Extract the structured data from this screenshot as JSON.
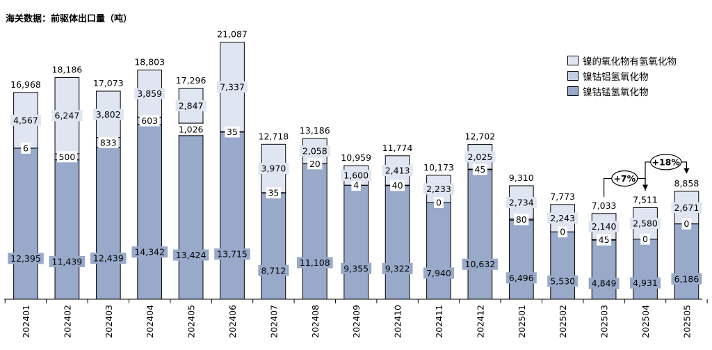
{
  "chart_data": {
    "type": "bar",
    "stacked": true,
    "title": "海关数据：前驱体出口量（吨）",
    "categories": [
      "202401",
      "202402",
      "202403",
      "202404",
      "202405",
      "202406",
      "202407",
      "202408",
      "202409",
      "202410",
      "202411",
      "202412",
      "202501",
      "202502",
      "202503",
      "202504",
      "202505"
    ],
    "series": [
      {
        "name": "镍钴锰氢氧化物",
        "color": "#98a9c9",
        "values": [
          12395,
          11439,
          12439,
          14342,
          13424,
          13715,
          8712,
          11108,
          9355,
          9322,
          7940,
          10632,
          6496,
          5530,
          4849,
          4931,
          6186
        ]
      },
      {
        "name": "镍钴铝氢氧化物",
        "color": "#c5cee4",
        "values": [
          6,
          500,
          833,
          603,
          1026,
          35,
          35,
          20,
          4,
          40,
          0,
          45,
          80,
          0,
          45,
          0,
          0
        ]
      },
      {
        "name": "镍的氧化物有氢氧化物",
        "color": "#dfe5f1",
        "values": [
          4567,
          6247,
          3802,
          3859,
          2847,
          7337,
          3970,
          2058,
          1600,
          2413,
          2233,
          2025,
          2734,
          2243,
          2140,
          2580,
          2671
        ]
      }
    ],
    "totals": [
      "16,968",
      "18,186",
      "17,073",
      "18,803",
      "17,296",
      "21,087",
      "12,718",
      "13,186",
      "10,959",
      "11,774",
      "10,173",
      "12,702",
      "9,310",
      "7,773",
      "7,033",
      "7,511",
      "8,858"
    ],
    "value_labels": [
      [
        "12,395",
        "11,439",
        "12,439",
        "14,342",
        "13,424",
        "13,715",
        "8,712",
        "11,108",
        "9,355",
        "9,322",
        "7,940",
        "10,632",
        "6,496",
        "5,530",
        "4,849",
        "4,931",
        "6,186"
      ],
      [
        "6",
        "500",
        "833",
        "603",
        "1,026",
        "35",
        "35",
        "20",
        "4",
        "40",
        "0",
        "45",
        "80",
        "0",
        "45",
        "0",
        "0"
      ],
      [
        "4,567",
        "6,247",
        "3,802",
        "3,859",
        "2,847",
        "7,337",
        "3,970",
        "2,058",
        "1,600",
        "2,413",
        "2,233",
        "2,025",
        "2,734",
        "2,243",
        "2,140",
        "2,580",
        "2,671"
      ]
    ],
    "ylim": [
      0,
      22000
    ],
    "legend_position": "top-right",
    "legend_order": [
      2,
      1,
      0
    ],
    "annotations": [
      {
        "text": "+7%",
        "from_category": "202503",
        "to_category": "202504"
      },
      {
        "text": "+18%",
        "from_category": "202504",
        "to_category": "202505"
      }
    ]
  }
}
